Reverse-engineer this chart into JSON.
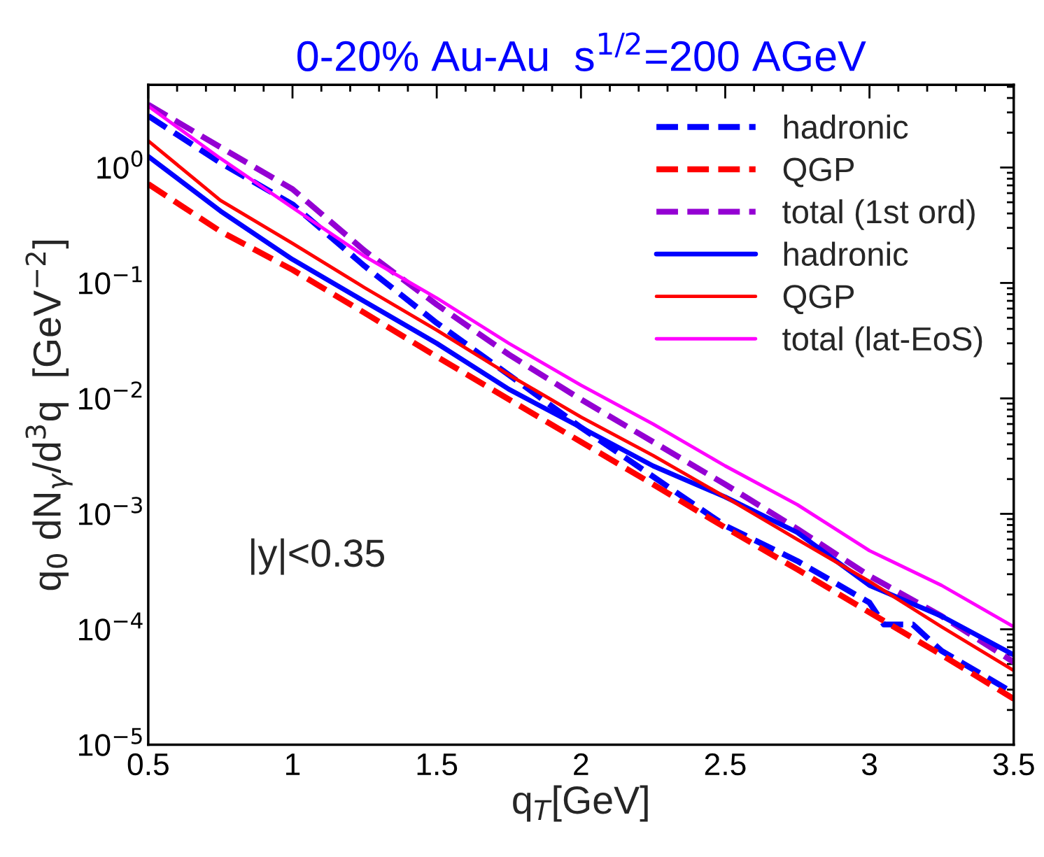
{
  "chart_data": {
    "type": "line",
    "title": "0-20% Au-Au  s$^{1/2}$=200 AGeV",
    "xlabel": "q$_{T}$[GeV]",
    "ylabel": "q$_{0}$ dN$_{γ}$/d$^{3}$q  [GeV$^{−2}$]",
    "x": [
      0.5,
      0.75,
      1.0,
      1.25,
      1.5,
      1.75,
      2.0,
      2.25,
      2.5,
      2.75,
      3.0,
      3.25,
      3.5
    ],
    "series": [
      {
        "name": "hadronic",
        "color": "#0000ff",
        "line_style": "dashed",
        "x": [
          0.5,
          0.75,
          1.0,
          1.25,
          1.5,
          1.75,
          2.0,
          2.25,
          2.5,
          2.75,
          3.0,
          3.05,
          3.15,
          3.25,
          3.5
        ],
        "values": [
          2.8,
          1.1,
          0.48,
          0.14,
          0.045,
          0.016,
          0.0056,
          0.0021,
          0.00079,
          0.00039,
          0.00017,
          0.00011,
          0.00011,
          6.5e-05,
          2.8e-05
        ]
      },
      {
        "name": "QGP",
        "color": "#ff0000",
        "line_style": "dashed",
        "values": [
          0.72,
          0.28,
          0.13,
          0.055,
          0.023,
          0.0098,
          0.0042,
          0.0018,
          0.00076,
          0.00033,
          0.00014,
          6e-05,
          2.5e-05
        ]
      },
      {
        "name": "total (1st ord)",
        "color": "#9400d3",
        "line_style": "dashed",
        "values": [
          3.5,
          1.5,
          0.65,
          0.19,
          0.065,
          0.024,
          0.0098,
          0.0042,
          0.0018,
          0.00074,
          0.00029,
          0.00013,
          5.2e-05
        ]
      },
      {
        "name": "hadronic",
        "color": "#0000ff",
        "line_style": "solid",
        "values": [
          1.25,
          0.42,
          0.16,
          0.069,
          0.03,
          0.012,
          0.0056,
          0.0026,
          0.0014,
          0.00069,
          0.00024,
          0.00013,
          6e-05
        ]
      },
      {
        "name": "QGP",
        "color": "#ff0000",
        "line_style": "solid",
        "values": [
          1.7,
          0.52,
          0.22,
          0.091,
          0.039,
          0.016,
          0.0069,
          0.0032,
          0.0014,
          0.0006,
          0.00026,
          0.000105,
          4.4e-05
        ]
      },
      {
        "name": "total (lat-EoS)",
        "color": "#ff00ff",
        "line_style": "solid",
        "values": [
          3.4,
          1.2,
          0.45,
          0.17,
          0.074,
          0.03,
          0.013,
          0.006,
          0.0026,
          0.0012,
          0.00048,
          0.00024,
          0.000105
        ]
      }
    ],
    "log": "y",
    "xlim": [
      0.5,
      3.5
    ],
    "ylim": [
      1e-05,
      5.2
    ],
    "xticks": [
      0.5,
      1,
      1.5,
      2,
      2.5,
      3,
      3.5
    ],
    "yticks": [
      {
        "value": 1e-05,
        "label": "10$^{−5}$"
      },
      {
        "value": 0.0001,
        "label": "10$^{−4}$"
      },
      {
        "value": 0.001,
        "label": "10$^{−3}$"
      },
      {
        "value": 0.01,
        "label": "10$^{−2}$"
      },
      {
        "value": 0.1,
        "label": "10$^{−1}$"
      },
      {
        "value": 1,
        "label": "10$^{0}$"
      }
    ],
    "annotations": [
      "|y|<0.35"
    ],
    "legend": "top right",
    "grid": false
  }
}
